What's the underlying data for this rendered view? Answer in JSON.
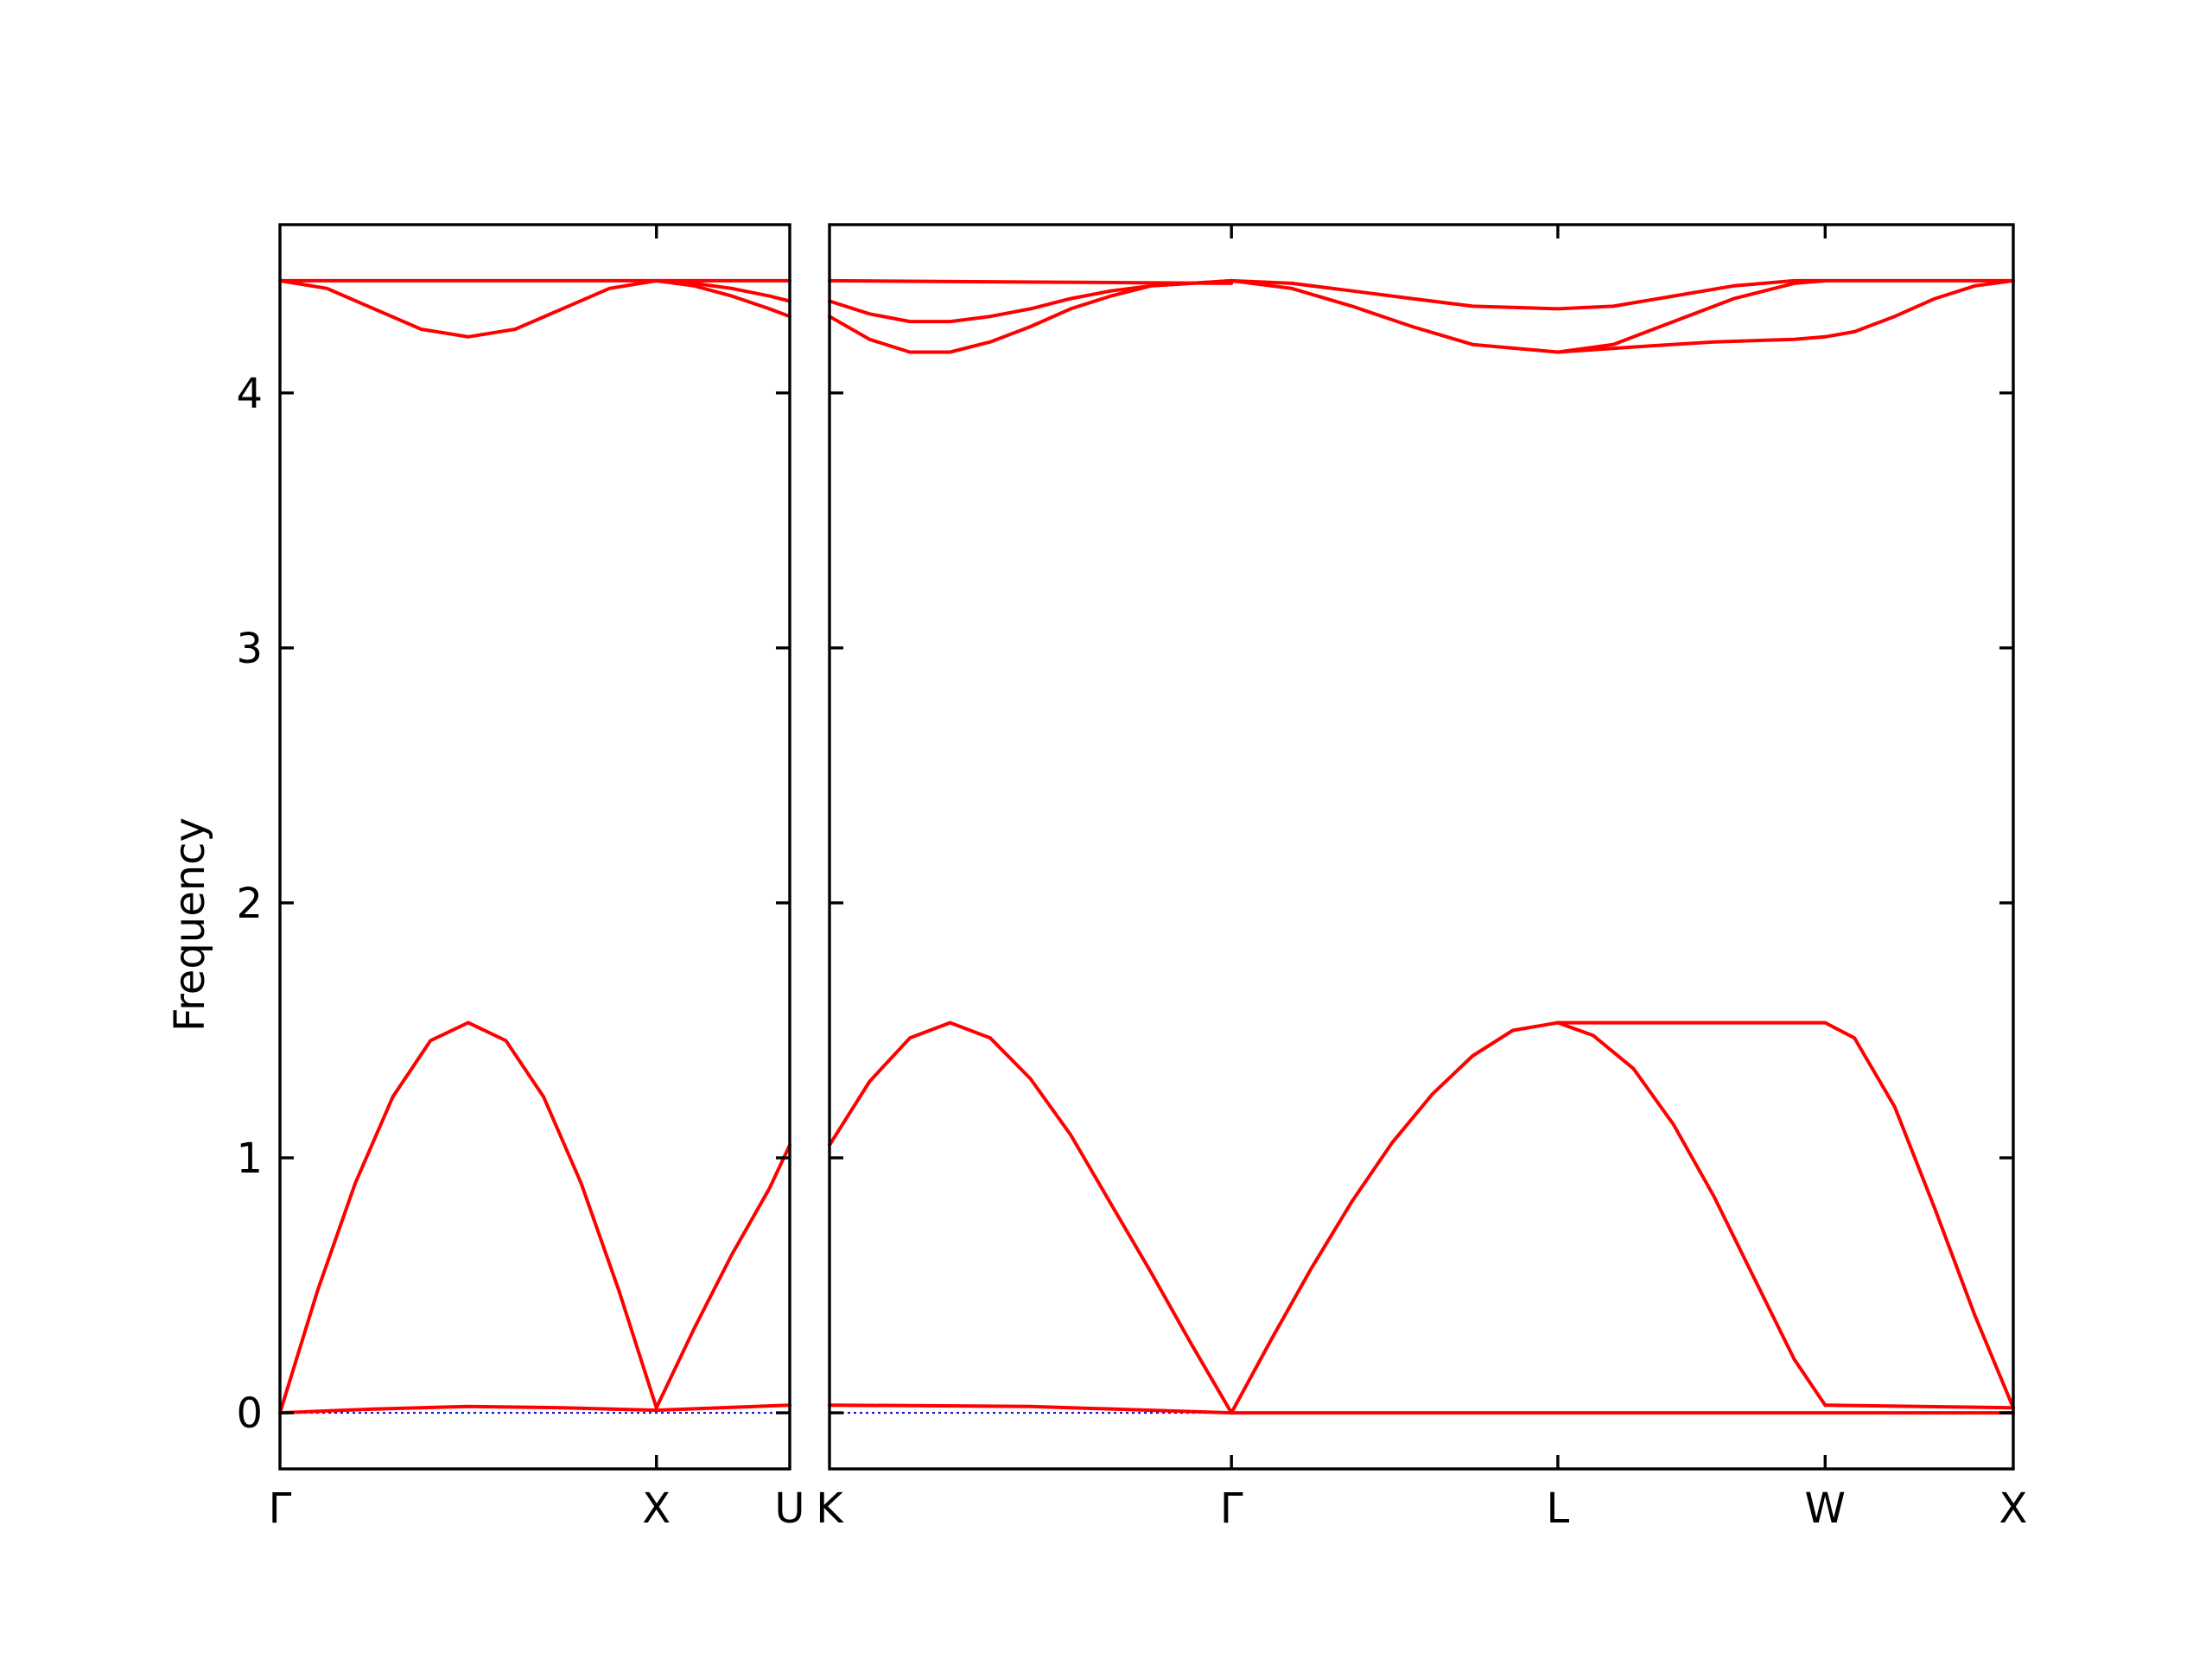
{
  "chart_data": {
    "type": "line",
    "ylabel": "Frequency",
    "ylim": [
      -0.22,
      4.66
    ],
    "yticks": [
      0,
      1,
      2,
      3,
      4
    ],
    "band_color": "#ff0000",
    "zero_line_color": "#0000cc",
    "panels": [
      {
        "xlim": [
          0,
          1.354
        ],
        "xticks": [
          {
            "x": 0,
            "label": "Γ"
          },
          {
            "x": 1.0,
            "label": "X"
          },
          {
            "x": 1.354,
            "label": "U"
          }
        ],
        "series": [
          {
            "x": [
              0,
              0.1,
              0.2,
              0.3,
              0.4,
              0.5,
              0.6,
              0.7,
              0.8,
              0.9,
              1.0
            ],
            "y": [
              0.0,
              0.48,
              0.9,
              1.24,
              1.46,
              1.53,
              1.46,
              1.24,
              0.9,
              0.48,
              0.02
            ]
          },
          {
            "x": [
              1.0,
              1.1,
              1.2,
              1.3,
              1.354
            ],
            "y": [
              0.02,
              0.33,
              0.62,
              0.88,
              1.05
            ]
          },
          {
            "x": [
              0,
              0.25,
              0.5,
              0.75,
              1.0,
              1.354
            ],
            "y": [
              0.0,
              0.015,
              0.025,
              0.02,
              0.01,
              0.03
            ]
          },
          {
            "x": [
              0,
              1.354
            ],
            "y": [
              4.44,
              4.44
            ]
          },
          {
            "x": [
              0,
              0.125,
              0.25,
              0.375,
              0.5,
              0.625,
              0.75,
              0.875,
              1.0
            ],
            "y": [
              4.44,
              4.41,
              4.33,
              4.25,
              4.22,
              4.25,
              4.33,
              4.41,
              4.44
            ]
          },
          {
            "x": [
              1.0,
              1.1,
              1.2,
              1.3,
              1.354
            ],
            "y": [
              4.44,
              4.43,
              4.41,
              4.38,
              4.36
            ]
          },
          {
            "x": [
              1.0,
              1.1,
              1.2,
              1.3,
              1.354
            ],
            "y": [
              4.44,
              4.42,
              4.38,
              4.33,
              4.3
            ]
          }
        ]
      },
      {
        "xlim": [
          0,
          2.945
        ],
        "xticks": [
          {
            "x": 0,
            "label": "K"
          },
          {
            "x": 1.0,
            "label": "Γ"
          },
          {
            "x": 1.812,
            "label": "L"
          },
          {
            "x": 2.477,
            "label": "W"
          },
          {
            "x": 2.945,
            "label": "X"
          }
        ],
        "series": [
          {
            "x": [
              0,
              0.1,
              0.2,
              0.3,
              0.4,
              0.5,
              0.6,
              0.7,
              0.8,
              0.9,
              1.0
            ],
            "y": [
              1.05,
              1.3,
              1.47,
              1.53,
              1.47,
              1.31,
              1.09,
              0.82,
              0.55,
              0.27,
              0.0
            ]
          },
          {
            "x": [
              1.0,
              1.1,
              1.2,
              1.3,
              1.4,
              1.5,
              1.6,
              1.7,
              1.812
            ],
            "y": [
              0.0,
              0.29,
              0.57,
              0.83,
              1.06,
              1.25,
              1.4,
              1.5,
              1.53
            ]
          },
          {
            "x": [
              1.812,
              1.9,
              2.0,
              2.1,
              2.2,
              2.3,
              2.4,
              2.477
            ],
            "y": [
              1.53,
              1.48,
              1.35,
              1.13,
              0.85,
              0.53,
              0.21,
              0.03
            ]
          },
          {
            "x": [
              1.812,
              2.477,
              2.55,
              2.65,
              2.75,
              2.85,
              2.945
            ],
            "y": [
              1.53,
              1.53,
              1.47,
              1.2,
              0.8,
              0.38,
              0.02
            ]
          },
          {
            "x": [
              2.477,
              2.945
            ],
            "y": [
              0.03,
              0.02
            ]
          },
          {
            "x": [
              0,
              0.5,
              1.0
            ],
            "y": [
              0.03,
              0.025,
              0.0
            ]
          },
          {
            "x": [
              1.0,
              1.812,
              2.945
            ],
            "y": [
              0.0,
              0.0,
              0.0
            ]
          },
          {
            "x": [
              0,
              1.0
            ],
            "y": [
              4.44,
              4.43
            ]
          },
          {
            "x": [
              0,
              0.1,
              0.2,
              0.3,
              0.4,
              0.5,
              0.6,
              0.7,
              0.8,
              0.9,
              1.0
            ],
            "y": [
              4.36,
              4.31,
              4.28,
              4.28,
              4.3,
              4.33,
              4.37,
              4.4,
              4.42,
              4.43,
              4.44
            ]
          },
          {
            "x": [
              0,
              0.1,
              0.2,
              0.3,
              0.4,
              0.5,
              0.6,
              0.7,
              0.8,
              0.9,
              1.0
            ],
            "y": [
              4.3,
              4.21,
              4.16,
              4.16,
              4.2,
              4.26,
              4.33,
              4.38,
              4.42,
              4.43,
              4.44
            ]
          },
          {
            "x": [
              1.0,
              1.15,
              1.3,
              1.45,
              1.6,
              1.812,
              1.95,
              2.1,
              2.25,
              2.4,
              2.477
            ],
            "y": [
              4.44,
              4.43,
              4.4,
              4.37,
              4.34,
              4.33,
              4.34,
              4.38,
              4.42,
              4.44,
              4.44
            ]
          },
          {
            "x": [
              1.0,
              1.15,
              1.3,
              1.45,
              1.6,
              1.812
            ],
            "y": [
              4.44,
              4.41,
              4.34,
              4.26,
              4.19,
              4.16
            ]
          },
          {
            "x": [
              1.812,
              1.95,
              2.1,
              2.25,
              2.4,
              2.477
            ],
            "y": [
              4.16,
              4.19,
              4.28,
              4.37,
              4.43,
              4.44
            ]
          },
          {
            "x": [
              1.812,
              2.0,
              2.2,
              2.4,
              2.477
            ],
            "y": [
              4.16,
              4.18,
              4.2,
              4.21,
              4.22
            ]
          },
          {
            "x": [
              2.477,
              2.945
            ],
            "y": [
              4.44,
              4.44
            ]
          },
          {
            "x": [
              2.477,
              2.55,
              2.65,
              2.75,
              2.85,
              2.945
            ],
            "y": [
              4.22,
              4.24,
              4.3,
              4.37,
              4.42,
              4.44
            ]
          }
        ]
      }
    ]
  }
}
